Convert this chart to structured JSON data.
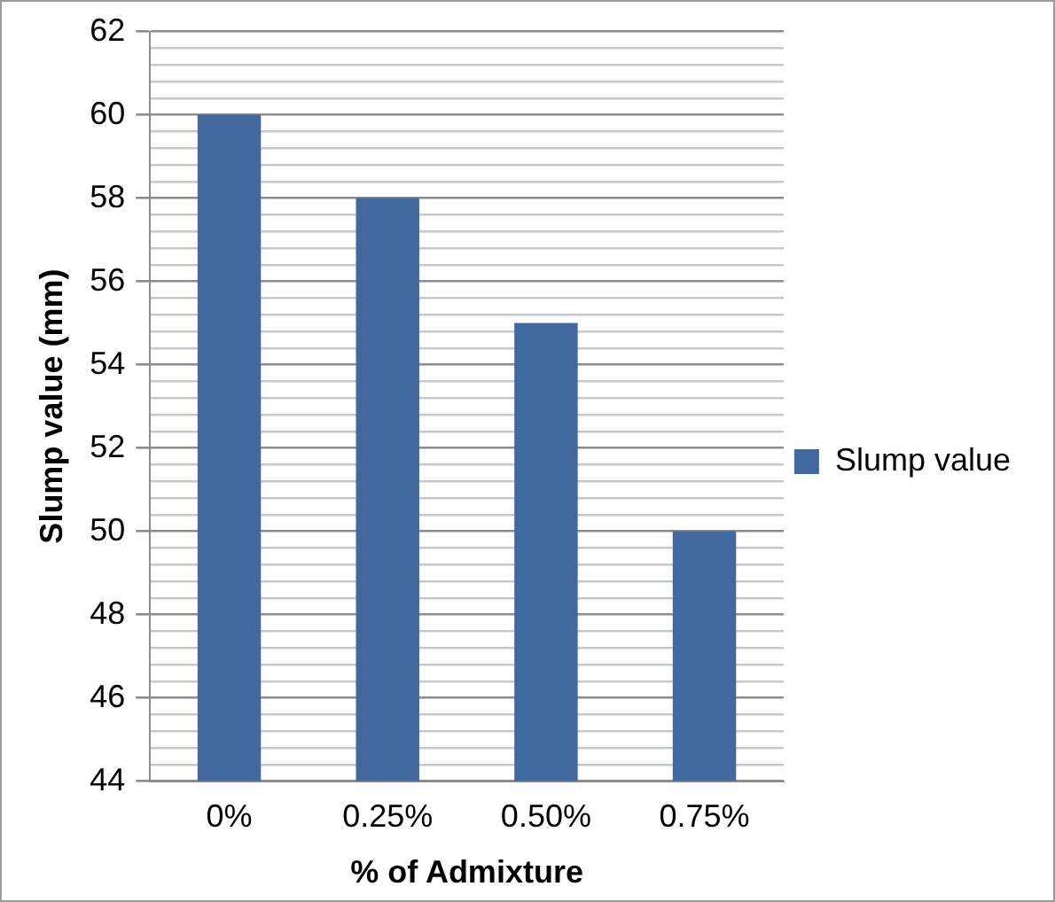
{
  "chart_data": {
    "type": "bar",
    "xlabel": "% of Admixture",
    "ylabel": "Slump value (mm)",
    "categories": [
      "0%",
      "0.25%",
      "0.50%",
      "0.75%"
    ],
    "series": [
      {
        "name": "Slump value",
        "color": "#4169a0",
        "values": [
          60,
          58,
          55,
          50
        ]
      }
    ],
    "ylim": [
      44,
      62
    ],
    "yticks": [
      44,
      {
        "value": 44.4,
        "label": null
      },
      {
        "value": 44.8,
        "label": null
      },
      {
        "value": 45.2,
        "label": null
      },
      {
        "value": 45.6,
        "label": null
      },
      46,
      {
        "value": 46.4,
        "label": null
      },
      {
        "value": 46.8,
        "label": null
      },
      {
        "value": 47.2,
        "label": null
      },
      {
        "value": 47.6,
        "label": null
      },
      48,
      {
        "value": 48.4,
        "label": null
      },
      {
        "value": 48.8,
        "label": null
      },
      {
        "value": 49.2,
        "label": null
      },
      {
        "value": 49.6,
        "label": null
      },
      50,
      {
        "value": 50.4,
        "label": null
      },
      {
        "value": 50.8,
        "label": null
      },
      {
        "value": 51.2,
        "label": null
      },
      {
        "value": 51.6,
        "label": null
      },
      52,
      {
        "value": 52.4,
        "label": null
      },
      {
        "value": 52.8,
        "label": null
      },
      {
        "value": 53.2,
        "label": null
      },
      {
        "value": 53.6,
        "label": null
      },
      54,
      {
        "value": 54.4,
        "label": null
      },
      {
        "value": 54.8,
        "label": null
      },
      {
        "value": 55.2,
        "label": null
      },
      {
        "value": 55.6,
        "label": null
      },
      56,
      {
        "value": 56.4,
        "label": null
      },
      {
        "value": 56.8,
        "label": null
      },
      {
        "value": 57.2,
        "label": null
      },
      {
        "value": 57.6,
        "label": null
      },
      58,
      {
        "value": 58.4,
        "label": null
      },
      {
        "value": 58.8,
        "label": null
      },
      {
        "value": 59.2,
        "label": null
      },
      {
        "value": 59.6,
        "label": null
      },
      60,
      {
        "value": 60.4,
        "label": null
      },
      {
        "value": 60.8,
        "label": null
      },
      {
        "value": 61.2,
        "label": null
      },
      {
        "value": 61.6,
        "label": null
      },
      62
    ],
    "grid": "y",
    "legend": "right"
  }
}
